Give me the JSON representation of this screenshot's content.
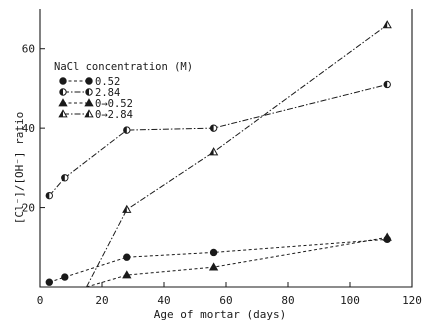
{
  "chart_data": {
    "type": "line",
    "title": "",
    "xlabel": "Age of mortar (days)",
    "ylabel": "[Cl⁻]/[OH⁻] ratio",
    "xlim": [
      0,
      120
    ],
    "ylim": [
      0,
      70
    ],
    "xticks": [
      0,
      20,
      40,
      60,
      80,
      100,
      120
    ],
    "yticks": [
      20,
      40,
      60
    ],
    "grid": false,
    "legend_title": "NaCl concentration (M)",
    "legend_position": "top-left",
    "series": [
      {
        "name": "0.52",
        "marker": "filled-circle",
        "line": "dashed",
        "points": [
          [
            3,
            1.2
          ],
          [
            8,
            2.5
          ],
          [
            28,
            7.5
          ],
          [
            56,
            8.7
          ],
          [
            112,
            12
          ]
        ]
      },
      {
        "name": "2.84",
        "marker": "half-circle",
        "line": "dash-dot",
        "points": [
          [
            3,
            23
          ],
          [
            8,
            27.5
          ],
          [
            28,
            39.5
          ],
          [
            56,
            40
          ],
          [
            112,
            51
          ]
        ]
      },
      {
        "name": "0→0.52",
        "marker": "filled-triangle",
        "line": "dashed",
        "points": [
          [
            15,
            0
          ],
          [
            28,
            3
          ],
          [
            56,
            5
          ],
          [
            112,
            12.5
          ]
        ]
      },
      {
        "name": "0→2.84",
        "marker": "half-triangle",
        "line": "dash-dot",
        "points": [
          [
            15,
            0
          ],
          [
            28,
            19.5
          ],
          [
            56,
            34
          ],
          [
            112,
            66
          ]
        ]
      }
    ]
  }
}
